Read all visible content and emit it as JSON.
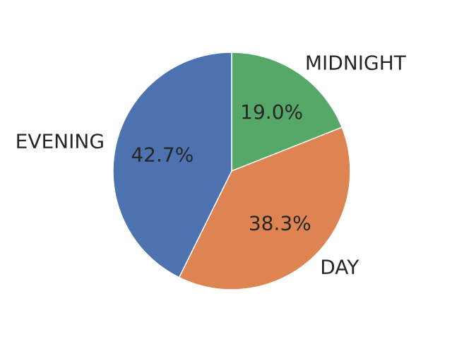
{
  "chart_data": {
    "type": "pie",
    "categories": [
      "MIDNIGHT",
      "DAY",
      "EVENING"
    ],
    "values": [
      19.0,
      38.3,
      42.7
    ],
    "percent_labels": [
      "19.0%",
      "38.3%",
      "42.7%"
    ],
    "colors": [
      "#55a868",
      "#dd8452",
      "#4c72b0"
    ],
    "start_angle": "12 o'clock",
    "direction": "clockwise",
    "title": "",
    "legend": "none"
  }
}
